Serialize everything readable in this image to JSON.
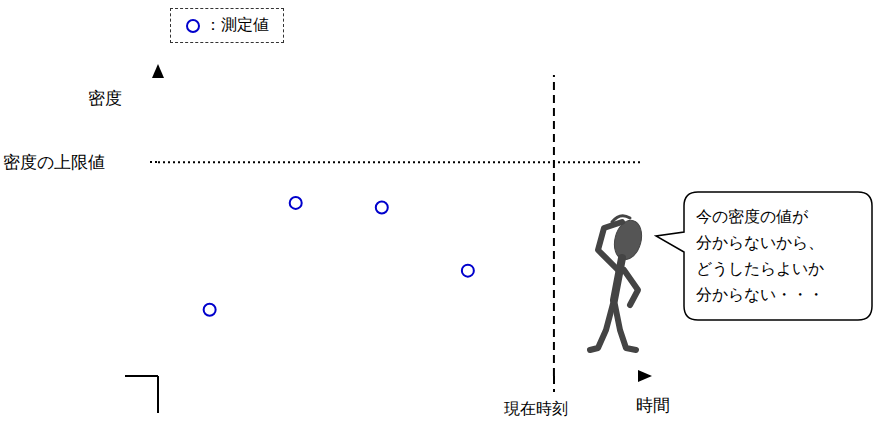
{
  "chart_data": {
    "type": "scatter",
    "legend": "upper left",
    "tick_labels": false,
    "x_label": "時間",
    "y_label": "密度",
    "xlim": [
      0,
      5.6
    ],
    "ylim": [
      0,
      10
    ],
    "series": [
      {
        "name": "：測定値",
        "color": "#0000cc",
        "marker": "circle_open",
        "x": [
          0.6,
          1.6,
          2.6,
          3.6
        ],
        "values": [
          2.2,
          5.75,
          5.6,
          3.5
        ]
      }
    ],
    "annotations": [
      {
        "type": "hline",
        "y": 7.1,
        "label": "密度の上限値",
        "line_style": "dotted"
      },
      {
        "type": "vline",
        "x": 4.6,
        "label": "現在時刻",
        "line_style": "dashed"
      },
      {
        "type": "speech_bubble",
        "lines": [
          "今の密度の値が",
          "分からないから、",
          "どうしたらよいか",
          "分からない・・・"
        ]
      }
    ]
  }
}
